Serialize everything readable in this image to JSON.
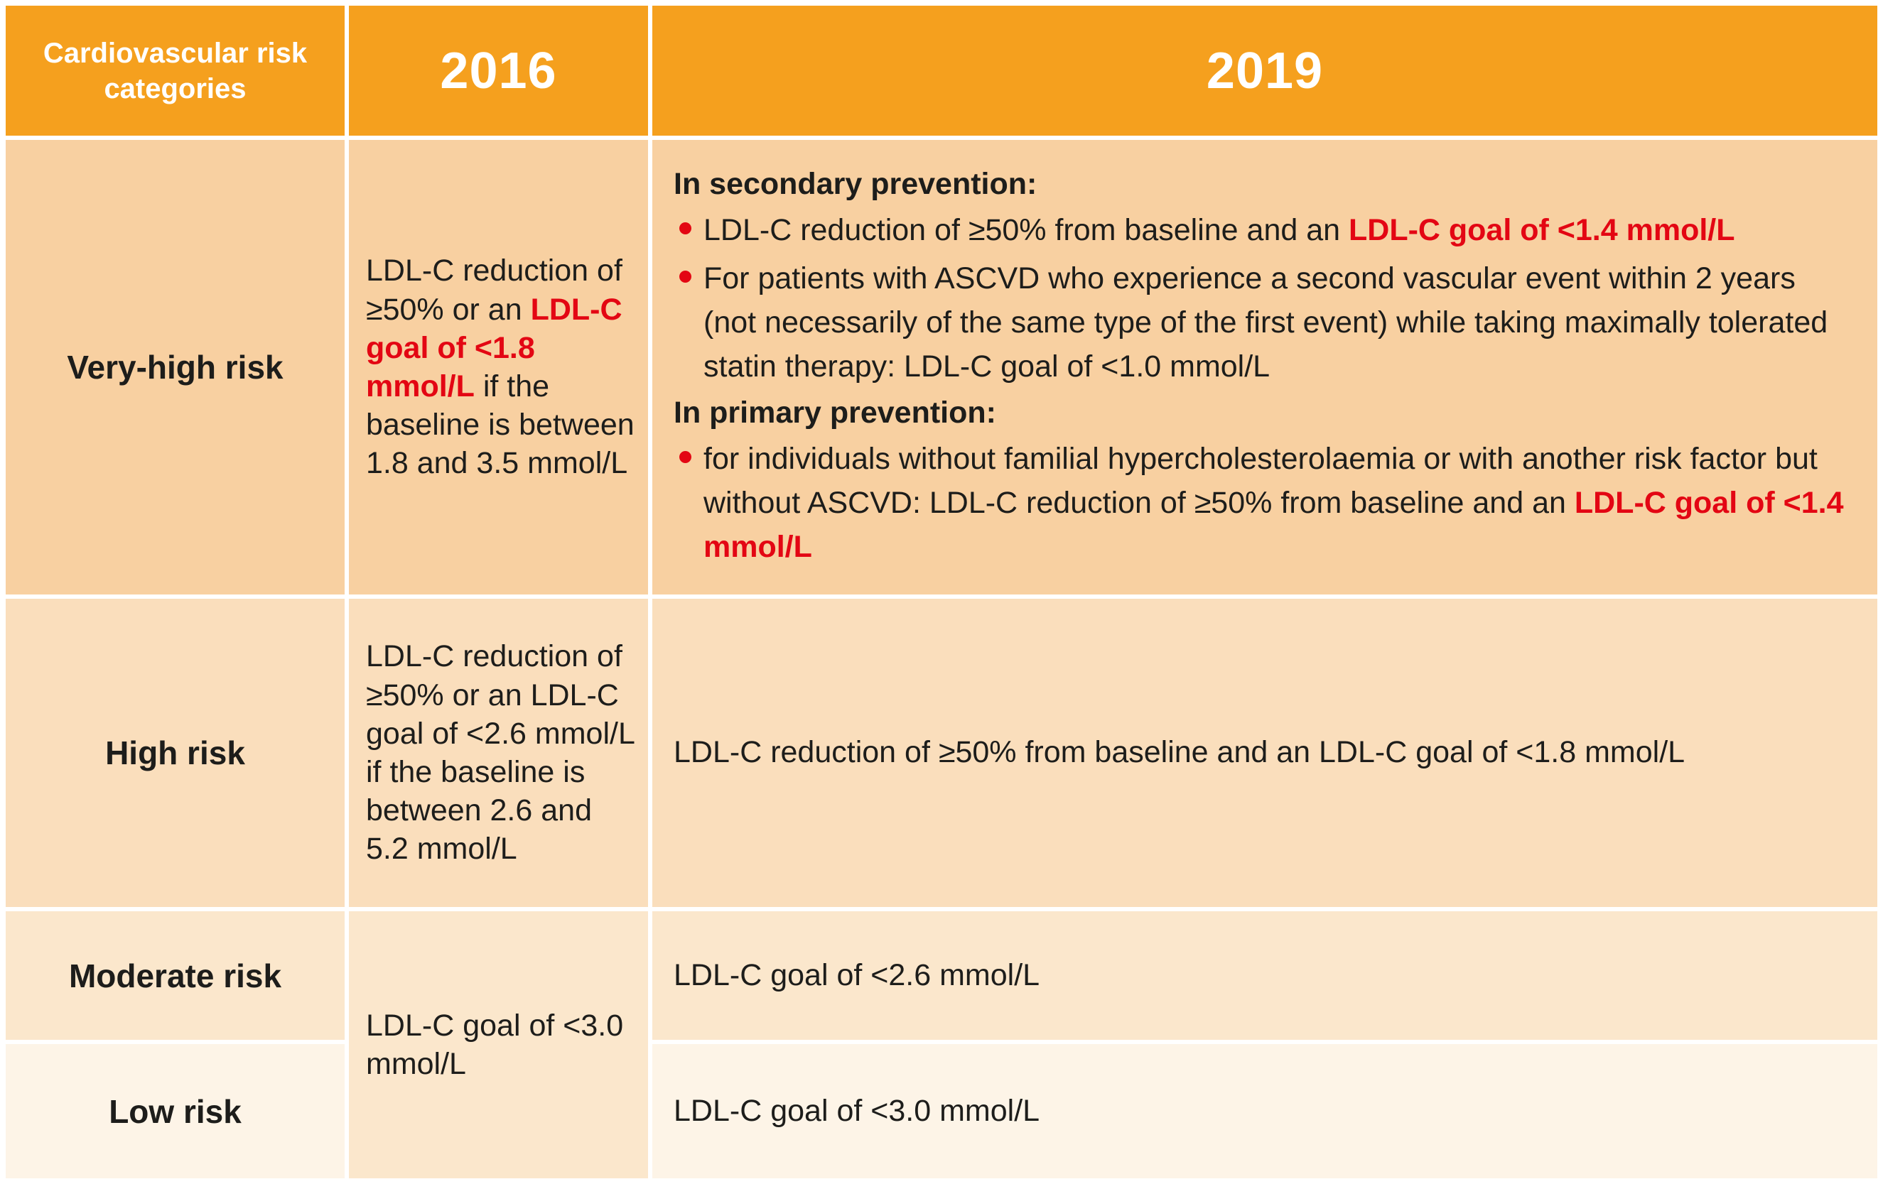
{
  "table": {
    "header": {
      "col_categories": "Cardiovascular risk categories",
      "col_2016": "2016",
      "col_2019": "2019"
    },
    "rows": {
      "very_high": {
        "label": "Very-high risk",
        "y2016": {
          "pre": "LDL-C reduction of ≥50% or an ",
          "red": "LDL-C goal of <1.8 mmol/L",
          "post": " if the baseline is between 1.8 and 3.5 mmol/L"
        },
        "y2019": {
          "heading_secondary": "In secondary prevention:",
          "bullet1": {
            "pre": "LDL-C reduction of ≥50% from baseline and an ",
            "red": "LDL-C goal of <1.4 mmol/L"
          },
          "bullet2": "For patients with ASCVD who experience a second vascular event within 2 years (not necessarily of the same type of the first event) while taking maximally tolerated statin therapy: LDL-C goal of <1.0 mmol/L",
          "heading_primary": "In primary prevention:",
          "bullet3": {
            "pre": "for individuals without familial hypercholesterolaemia or with another risk factor but without ASCVD: LDL-C reduction of ≥50% from baseline and an ",
            "red": "LDL-C goal of <1.4 mmol/L"
          }
        }
      },
      "high": {
        "label": "High risk",
        "y2016": "LDL-C reduction of ≥50% or an LDL-C goal of <2.6 mmol/L if the baseline is between 2.6 and 5.2 mmol/L",
        "y2019": "LDL-C reduction of ≥50% from baseline and an LDL-C goal of <1.8 mmol/L"
      },
      "moderate": {
        "label": "Moderate risk",
        "y2019": "LDL-C goal of <2.6 mmol/L"
      },
      "low": {
        "label": "Low risk",
        "y2019": "LDL-C goal of <3.0 mmol/L"
      },
      "moderate_low_2016": "LDL-C goal of <3.0 mmol/L"
    },
    "colors": {
      "header_bg": "#F5A01E",
      "row_very_high_bg": "#F8D0A1",
      "row_high_bg": "#FADEBC",
      "row_moderate_bg": "#FBE7CC",
      "row_low_bg": "#FDF4E7",
      "accent_red": "#E30613",
      "text_dark": "#1D1D1B",
      "header_text": "#FFFFFF"
    }
  }
}
